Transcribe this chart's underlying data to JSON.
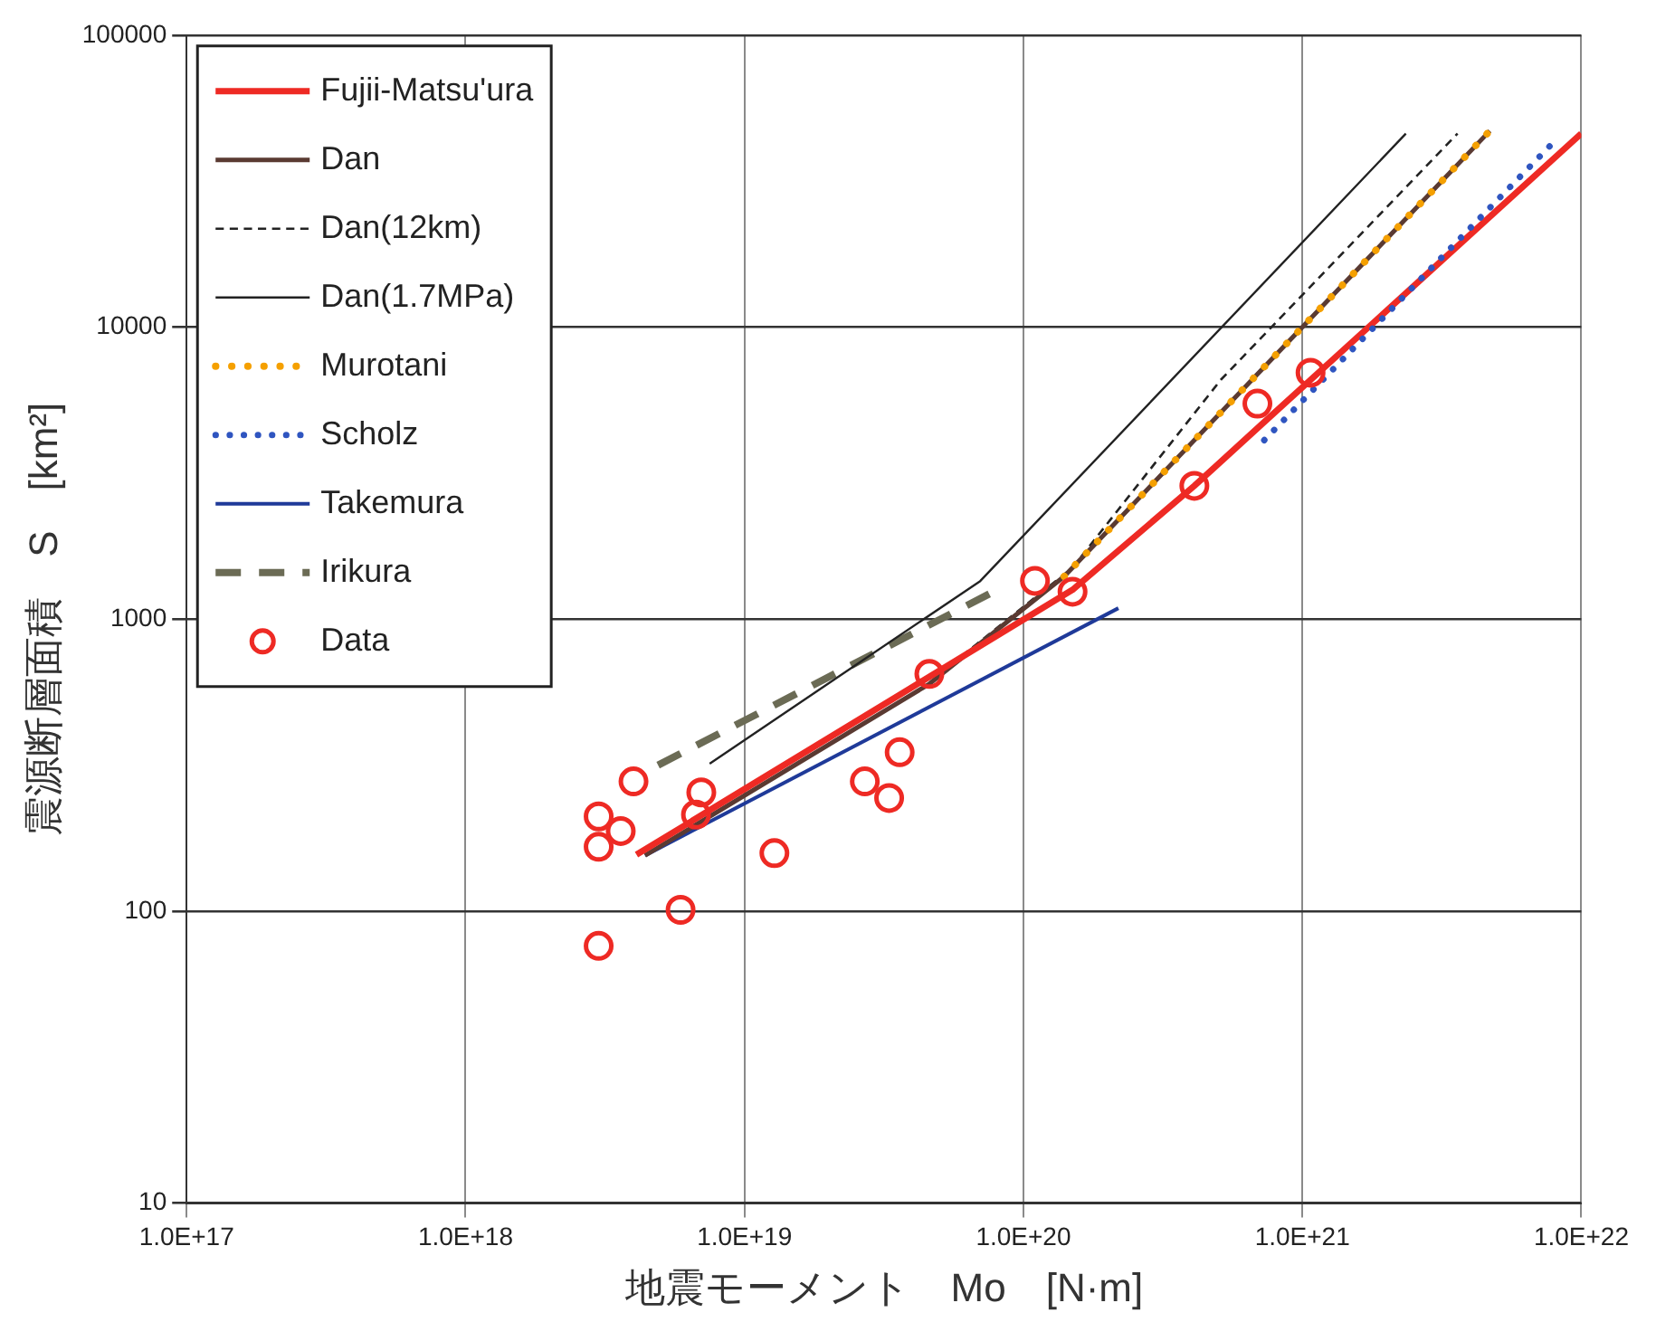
{
  "chart_data": {
    "type": "line",
    "xlabel": "地震モーメント　Mo　[N·m]",
    "ylabel": "震源断層面積　S　[km²]",
    "log": "xy",
    "grid": true,
    "legend": "top left",
    "xlim": [
      1e+17,
      1e+22
    ],
    "xticks": [
      {
        "value": 1e+17,
        "label": "1.0E+17"
      },
      {
        "value": 1e+18,
        "label": "1.0E+18"
      },
      {
        "value": 1e+19,
        "label": "1.0E+19"
      },
      {
        "value": 1e+20,
        "label": "1.0E+20"
      },
      {
        "value": 1e+21,
        "label": "1.0E+21"
      },
      {
        "value": 1e+22,
        "label": "1.0E+22"
      }
    ],
    "ylim": [
      10,
      100000
    ],
    "yticks": [
      10,
      100,
      1000,
      10000,
      100000
    ],
    "series": [
      {
        "name": "Fujii-Matsu'ura",
        "color": "#ee2a24",
        "line_style": "solid",
        "marker": "none",
        "x": [
          4.1e+18,
          1.5e+20,
          4.1e+20,
          7.3e+20,
          1e+22
        ],
        "values": [
          156,
          1260,
          2860,
          4730,
          46000
        ]
      },
      {
        "name": "Dan",
        "color": "#5a3a32",
        "line_style": "solid",
        "marker": "none",
        "x": [
          4.4e+18,
          4.6e+19,
          1.4e+20,
          4.7e+21
        ],
        "values": [
          155,
          600,
          1400,
          47000
        ]
      },
      {
        "name": "Dan(12km)",
        "color": "#222222",
        "line_style": "dashed",
        "marker": "none",
        "x": [
          5e+19,
          1.5e+20,
          5.1e+20,
          3.6e+21
        ],
        "values": [
          650,
          1500,
          6600,
          46000
        ]
      },
      {
        "name": "Dan(1.7MPa)",
        "color": "#222222",
        "line_style": "solid",
        "marker": "none",
        "x": [
          7.5e+18,
          7e+19,
          2.35e+21
        ],
        "values": [
          320,
          1350,
          46000
        ]
      },
      {
        "name": "Murotani",
        "color": "#f5a000",
        "line_style": "dotted",
        "marker": "none",
        "x": [
          1.4e+20,
          4.7e+21
        ],
        "values": [
          1400,
          47000
        ]
      },
      {
        "name": "Scholz",
        "color": "#2f55c0",
        "line_style": "dotted",
        "marker": "none",
        "x": [
          7.3e+20,
          7.9e+21
        ],
        "values": [
          4100,
          42700
        ]
      },
      {
        "name": "Takemura",
        "color": "#1f3a99",
        "line_style": "solid",
        "marker": "none",
        "x": [
          4.4e+18,
          2.19e+20
        ],
        "values": [
          155,
          1090
        ]
      },
      {
        "name": "Irikura",
        "color": "#6b6b55",
        "line_style": "dashed",
        "marker": "none",
        "x": [
          4.9e+18,
          7.8e+19
        ],
        "values": [
          316,
          1240
        ]
      },
      {
        "name": "Data",
        "type": "scatter",
        "color": "#ee2a24",
        "marker": "circle",
        "x": [
          3e+18,
          3.6e+18,
          3e+18,
          4e+18,
          7e+18,
          6.7e+18,
          1.28e+19,
          5.9e+18,
          3e+18,
          2.7e+19,
          3.3e+19,
          3.6e+19,
          4.6e+19,
          1.1e+20,
          1.5e+20,
          4.1e+20,
          6.9e+20,
          1.07e+21
        ],
        "values": [
          211,
          188,
          166,
          278,
          255,
          214,
          158,
          101,
          76,
          278,
          244,
          350,
          649,
          1352,
          1241,
          2860,
          5470,
          6980
        ]
      }
    ]
  }
}
